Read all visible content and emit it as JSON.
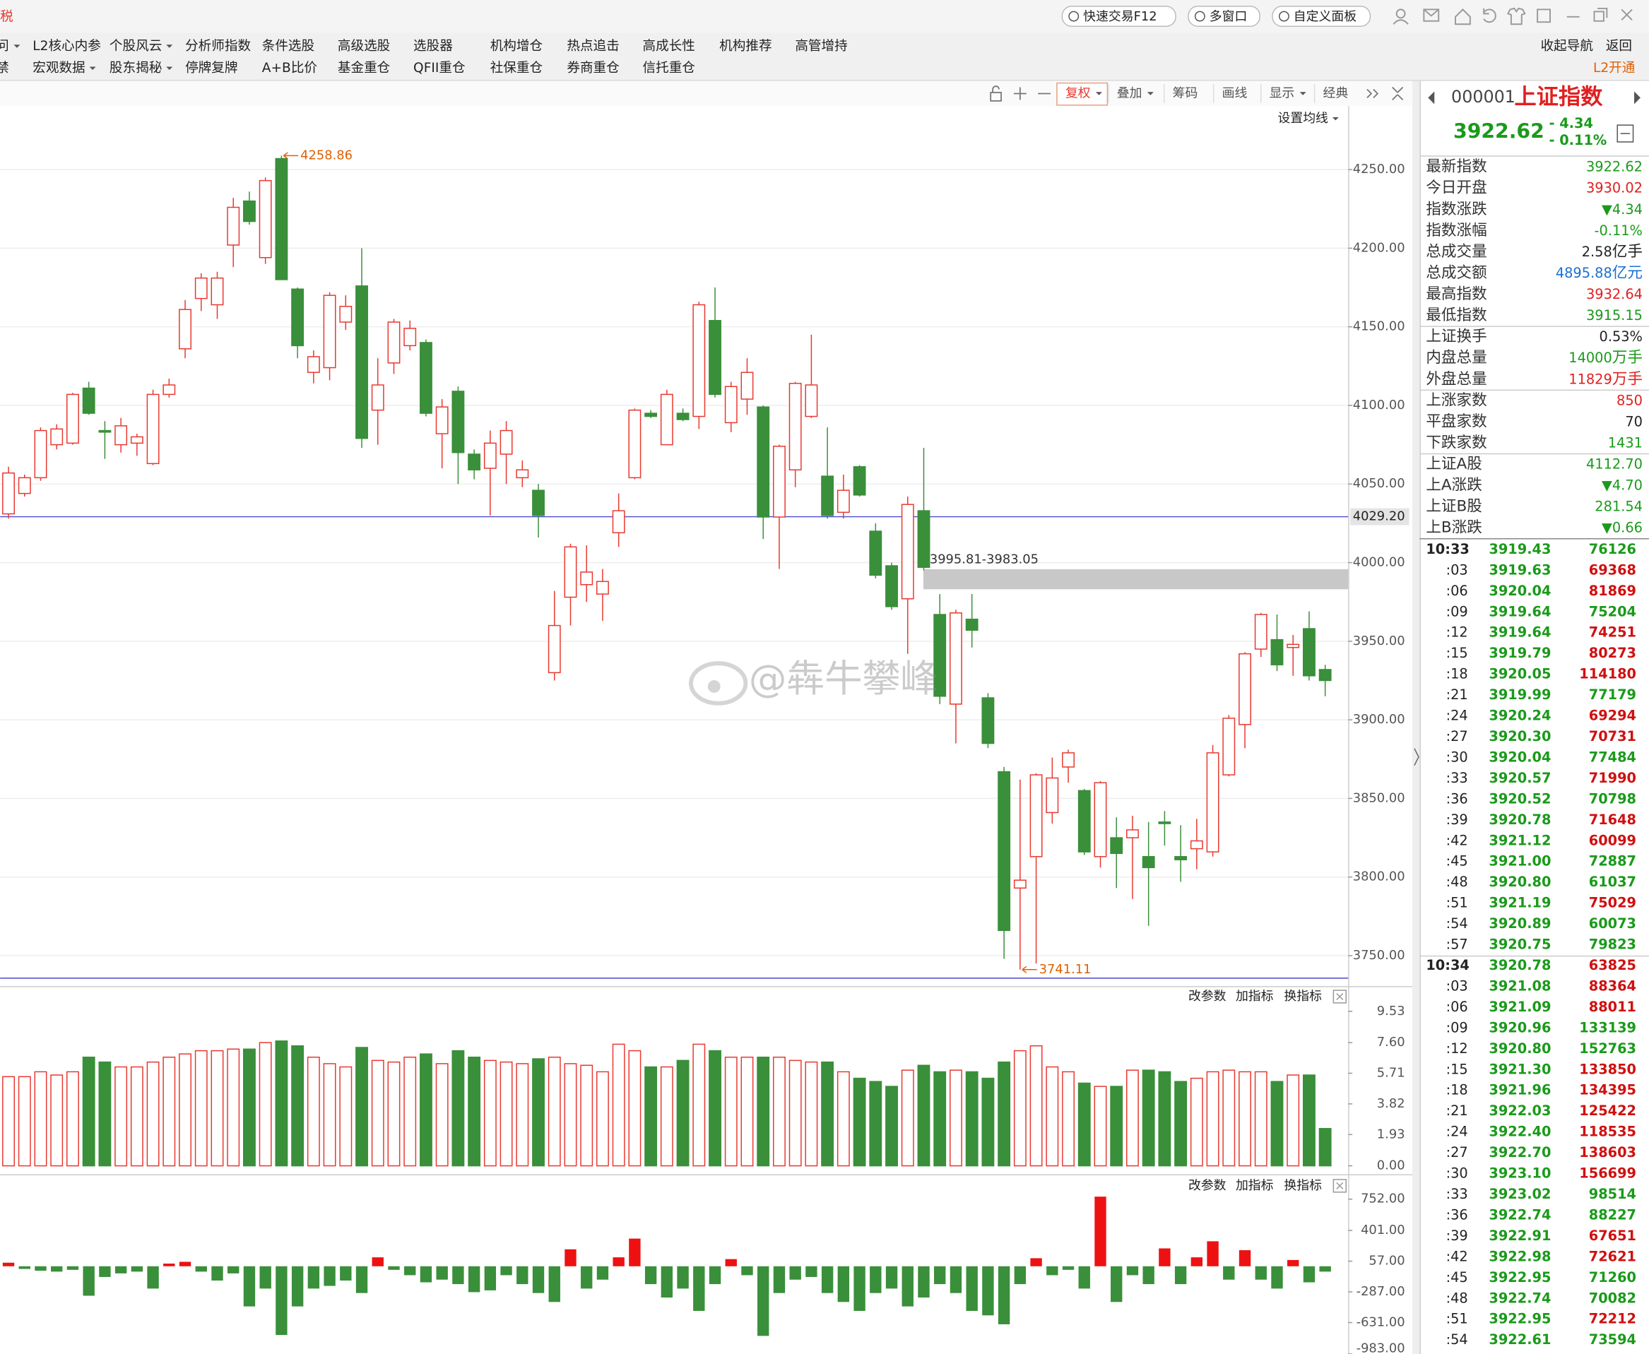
{
  "title_bar": {
    "left": "税",
    "buttons": [
      "快速交易F12",
      "多窗口",
      "自定义面板"
    ]
  },
  "menu": {
    "row1": [
      "问",
      "L2核心内参",
      "个股风云",
      "分析师指数",
      "条件选股",
      "高级选股",
      "选股器",
      "机构增仓",
      "热点追击",
      "高成长性",
      "机构推荐",
      "高管增持"
    ],
    "row2": [
      "禁",
      "宏观数据",
      "股东揭秘",
      "停牌复牌",
      "A+B比价",
      "基金重仓",
      "QFII重仓",
      "社保重仓",
      "券商重仓",
      "信托重仓"
    ],
    "right1": [
      "收起导航",
      "返回"
    ],
    "right2": "L2开通"
  },
  "toolbar": [
    "复权",
    "叠加",
    "筹码",
    "画线",
    "显示",
    "经典"
  ],
  "ma_button": "设置均线",
  "watermark": "@犇牛攀峰",
  "chart_data": {
    "type": "candlestick",
    "up_color": "#e8382f",
    "down_color": "#3a8f3a",
    "open": [
      4031,
      4044,
      4054,
      4075,
      4076,
      4111,
      4084,
      4075,
      4076,
      4063,
      4107,
      4136,
      4168,
      4164,
      4202,
      4230,
      4194,
      4257,
      4174,
      4121,
      4124,
      4153,
      4176,
      4097,
      4127,
      4138,
      4140,
      4082,
      4109,
      4069,
      4060,
      4069,
      4054,
      4046,
      3930,
      3978,
      3986,
      3980,
      4019,
      4054,
      4095,
      4075,
      4095,
      4093,
      4154,
      4089,
      4104,
      4099,
      4029,
      4059,
      4093,
      4055,
      4032,
      4061,
      4020,
      3998,
      3977,
      4033,
      3967,
      3910,
      3964,
      3914,
      3867,
      3793,
      3813,
      3841,
      3870,
      3855,
      3813,
      3825,
      3825,
      3813,
      3835,
      3813,
      3818,
      3816,
      3865,
      3897,
      3945,
      3951,
      3946,
      3958,
      3932
    ],
    "high": [
      4061,
      4056,
      4086,
      4088,
      4108,
      4115,
      4090,
      4092,
      4082,
      4110,
      4117,
      4167,
      4184,
      4185,
      4232,
      4236,
      4245,
      4258.86,
      4175,
      4135,
      4172,
      4170,
      4200,
      4130,
      4155,
      4154,
      4142,
      4104,
      4112,
      4072,
      4084,
      4090,
      4065,
      4050,
      3982,
      4012,
      4011,
      3996,
      4044,
      4098,
      4097,
      4110,
      4098,
      4166,
      4175,
      4115,
      4130,
      4100,
      4075,
      4115,
      4145,
      4086,
      4056,
      4062,
      4025,
      4000,
      4042,
      4073,
      3980,
      3970,
      3980,
      3917,
      3870,
      3862,
      3866,
      3876,
      3881,
      3856,
      3861,
      3838,
      3839,
      3835,
      3842,
      3833,
      3837,
      3884,
      3903,
      3943,
      3968,
      3967,
      3954,
      3969,
      3935
    ],
    "low": [
      4028,
      4042,
      4052,
      4072,
      4075,
      4094,
      4066,
      4070,
      4068,
      4062,
      4105,
      4130,
      4160,
      4155,
      4188,
      4215,
      4190,
      4180,
      4130,
      4114,
      4116,
      4148,
      4073,
      4075,
      4120,
      4135,
      4093,
      4060,
      4050,
      4053,
      4030,
      4050,
      4048,
      4016,
      3925,
      3960,
      3975,
      3963,
      4010,
      4053,
      4092,
      4075,
      4090,
      4085,
      4105,
      4083,
      4094,
      4015,
      3996,
      4048,
      4092,
      4028,
      4028,
      4042,
      3990,
      3970,
      3942,
      3995,
      3910,
      3885,
      3946,
      3882,
      3748,
      3741.11,
      3745,
      3834,
      3860,
      3814,
      3806,
      3793,
      3786,
      3769,
      3820,
      3797,
      3805,
      3813,
      3864,
      3882,
      3940,
      3931,
      3928,
      3925,
      3915
    ],
    "close": [
      4057,
      4054,
      4084,
      4085,
      4107,
      4095,
      4083,
      4087,
      4080,
      4107,
      4113,
      4161,
      4181,
      4181,
      4226,
      4217,
      4243,
      4180,
      4138,
      4131,
      4170,
      4163,
      4079,
      4113,
      4153,
      4149,
      4095,
      4099,
      4070,
      4059,
      4076,
      4084,
      4059,
      4030,
      3960,
      4010,
      3994,
      3988,
      4033,
      4097,
      4093,
      4107,
      4091,
      4164,
      4107,
      4112,
      4121,
      4029,
      4074,
      4114,
      4113,
      4030,
      4046,
      4043,
      3992,
      3972,
      4037,
      3997,
      3915,
      3968,
      3957,
      3885,
      3766,
      3798,
      3865,
      3863,
      3879,
      3816,
      3860,
      3815,
      3830,
      3806,
      3834,
      3811,
      3823,
      3879,
      3901,
      3942,
      3967,
      3935,
      3948,
      3928,
      3925
    ],
    "ylim": [
      3736,
      4291
    ],
    "yticks": [
      {
        "value": 3750,
        "label": "3750.00"
      },
      {
        "value": 3800,
        "label": "3800.00"
      },
      {
        "value": 3850,
        "label": "3850.00"
      },
      {
        "value": 3900,
        "label": "3900.00"
      },
      {
        "value": 3950,
        "label": "3950.00"
      },
      {
        "value": 4000,
        "label": "4000.00"
      },
      {
        "value": 4050,
        "label": "4050.00"
      },
      {
        "value": 4100,
        "label": "4100.00"
      },
      {
        "value": 4150,
        "label": "4150.00"
      },
      {
        "value": 4200,
        "label": "4200.00"
      },
      {
        "value": 4250,
        "label": "4250.00"
      }
    ],
    "grid": true,
    "annotations": {
      "high": 4258.86,
      "low": 3741.11,
      "gap": [
        3995.81,
        3983.05
      ],
      "gap_label": "3995.81-3983.05",
      "level": {
        "value": 4029.2,
        "label": "4029.20"
      }
    },
    "volume": {
      "values": [
        5.5,
        5.5,
        5.8,
        5.6,
        5.8,
        6.7,
        6.4,
        6.1,
        6.1,
        6.4,
        6.7,
        6.9,
        7.1,
        7.1,
        7.2,
        7.2,
        7.6,
        7.7,
        7.4,
        6.7,
        6.3,
        6.1,
        7.3,
        6.5,
        6.4,
        6.7,
        6.9,
        6.3,
        7.1,
        6.7,
        6.5,
        6.4,
        6.3,
        6.6,
        6.7,
        6.3,
        6.2,
        5.8,
        7.5,
        7.1,
        6.1,
        6.1,
        6.5,
        7.5,
        7.1,
        6.7,
        6.7,
        6.7,
        6.7,
        6.5,
        6.4,
        6.4,
        5.8,
        5.4,
        5.2,
        4.9,
        5.9,
        6.2,
        5.8,
        5.9,
        5.8,
        5.4,
        6.4,
        7.1,
        7.4,
        6.1,
        5.8,
        5.1,
        4.9,
        4.9,
        5.9,
        5.9,
        5.8,
        5.2,
        5.4,
        5.8,
        5.9,
        5.8,
        5.8,
        5.2,
        5.6,
        5.6,
        2.3
      ],
      "ylim": [
        0,
        9.53
      ],
      "yticks": [
        {
          "value": 0,
          "label": "0.00"
        },
        1.93,
        3.82,
        5.71,
        {
          "value": 7.6,
          "label": "7.60"
        },
        9.53
      ],
      "buttons": [
        "改参数",
        "加指标",
        "换指标"
      ]
    },
    "indicator": {
      "values": [
        40,
        -30,
        -50,
        -60,
        -40,
        -330,
        -120,
        -80,
        -60,
        -250,
        30,
        50,
        -60,
        -160,
        -80,
        -450,
        -250,
        -770,
        -450,
        -250,
        -220,
        -160,
        -300,
        100,
        -40,
        -100,
        -180,
        -150,
        -200,
        -290,
        -270,
        -100,
        -200,
        -300,
        -400,
        190,
        -250,
        -150,
        100,
        310,
        -200,
        -350,
        -250,
        -500,
        -200,
        80,
        -100,
        -780,
        -300,
        -150,
        -120,
        -300,
        -400,
        -500,
        -300,
        -250,
        -450,
        -350,
        -200,
        -300,
        -500,
        -550,
        -650,
        -200,
        90,
        -100,
        -40,
        -250,
        780,
        -400,
        -100,
        -200,
        200,
        -200,
        100,
        280,
        -150,
        180,
        -150,
        -250,
        70,
        -180,
        -60
      ],
      "ylim": [
        -983,
        819
      ],
      "yticks": [
        {
          "value": 752,
          "label": "752.00"
        },
        {
          "value": 401,
          "label": "401.00"
        },
        {
          "value": 57,
          "label": "57.00"
        },
        {
          "value": -287,
          "label": "-287.00"
        },
        {
          "value": -631,
          "label": "-631.00"
        },
        {
          "value": -983,
          "label": "-983.00"
        }
      ],
      "buttons": [
        "改参数",
        "加指标",
        "换指标"
      ]
    }
  },
  "quote": {
    "code": "000001",
    "name": "上证指数",
    "price": "3922.62",
    "change": "- 4.34",
    "pct": "- 0.11%",
    "stats": [
      {
        "label": "最新指数",
        "value": "3922.62",
        "color": "#1a9a1a"
      },
      {
        "label": "今日开盘",
        "value": "3930.02",
        "color": "#e02020"
      },
      {
        "label": "指数涨跌",
        "value": "▼4.34",
        "color": "#1a9a1a"
      },
      {
        "label": "指数涨幅",
        "value": "-0.11%",
        "color": "#1a9a1a"
      },
      {
        "label": "总成交量",
        "value": "2.58",
        "unit": "亿手",
        "color": "#222",
        "unit_color": "#222"
      },
      {
        "label": "总成交额",
        "value": "4895.88",
        "unit": "亿元",
        "color": "#1a6fd0",
        "unit_color": "#1a6fd0"
      },
      {
        "label": "最高指数",
        "value": "3932.64",
        "color": "#e02020"
      },
      {
        "label": "最低指数",
        "value": "3915.15",
        "color": "#1a9a1a"
      },
      {
        "label": "上证换手",
        "value": "0.53%",
        "color": "#222"
      },
      {
        "label": "内盘总量",
        "value": "14000",
        "unit": "万手",
        "color": "#1a9a1a",
        "unit_color": "#1a9a1a"
      },
      {
        "label": "外盘总量",
        "value": "11829",
        "unit": "万手",
        "color": "#e02020",
        "unit_color": "#e02020"
      },
      {
        "label": "上涨家数",
        "value": "850",
        "color": "#e02020"
      },
      {
        "label": "平盘家数",
        "value": "70",
        "color": "#222"
      },
      {
        "label": "下跌家数",
        "value": "1431",
        "color": "#1a9a1a"
      },
      {
        "label": "上证A股",
        "value": "4112.70",
        "color": "#1a9a1a"
      },
      {
        "label": "上A涨跌",
        "value": "▼4.70",
        "color": "#1a9a1a"
      },
      {
        "label": "上证B股",
        "value": "281.54",
        "color": "#1a9a1a"
      },
      {
        "label": "上B涨跌",
        "value": "▼0.66",
        "color": "#1a9a1a"
      }
    ],
    "price_color": "#1a9a1a",
    "ticks": {
      "times": [
        "10:33",
        ":03",
        ":06",
        ":09",
        ":12",
        ":15",
        ":18",
        ":21",
        ":24",
        ":27",
        ":30",
        ":33",
        ":36",
        ":39",
        ":42",
        ":45",
        ":48",
        ":51",
        ":54",
        ":57",
        "10:34",
        ":03",
        ":06",
        ":09",
        ":12",
        ":15",
        ":18",
        ":21",
        ":24",
        ":27",
        ":30",
        ":33",
        ":36",
        ":39",
        ":42",
        ":45",
        ":48",
        ":51",
        ":54"
      ],
      "prices": [
        "3919.43",
        "3919.63",
        "3920.04",
        "3919.64",
        "3919.64",
        "3919.79",
        "3920.05",
        "3919.99",
        "3920.24",
        "3920.30",
        "3920.04",
        "3920.57",
        "3920.52",
        "3920.78",
        "3921.12",
        "3921.00",
        "3920.80",
        "3921.19",
        "3920.89",
        "3920.75",
        "3920.78",
        "3921.08",
        "3921.09",
        "3920.96",
        "3920.80",
        "3921.30",
        "3921.96",
        "3922.03",
        "3922.40",
        "3922.70",
        "3923.10",
        "3923.02",
        "3922.74",
        "3922.91",
        "3922.98",
        "3922.95",
        "3922.74",
        "3922.95",
        "3922.61"
      ],
      "volumes": [
        "76126",
        "69368",
        "81869",
        "75204",
        "74251",
        "80273",
        "114180",
        "77179",
        "69294",
        "70731",
        "77484",
        "71990",
        "70798",
        "71648",
        "60099",
        "72887",
        "61037",
        "75029",
        "60073",
        "79823",
        "63825",
        "88364",
        "88011",
        "133139",
        "152763",
        "133850",
        "134395",
        "125422",
        "118535",
        "138603",
        "156699",
        "98514",
        "88227",
        "67651",
        "72621",
        "71260",
        "70082",
        "72212",
        "73594"
      ],
      "volume_colors": [
        "#1a9a1a",
        "#d01010",
        "#d01010",
        "#1a9a1a",
        "#d01010",
        "#d01010",
        "#d01010",
        "#1a9a1a",
        "#d01010",
        "#d01010",
        "#1a9a1a",
        "#d01010",
        "#1a9a1a",
        "#d01010",
        "#d01010",
        "#1a9a1a",
        "#1a9a1a",
        "#d01010",
        "#1a9a1a",
        "#1a9a1a",
        "#d01010",
        "#d01010",
        "#d01010",
        "#1a9a1a",
        "#1a9a1a",
        "#d01010",
        "#d01010",
        "#d01010",
        "#d01010",
        "#d01010",
        "#d01010",
        "#1a9a1a",
        "#1a9a1a",
        "#d01010",
        "#d01010",
        "#1a9a1a",
        "#1a9a1a",
        "#d01010",
        "#1a9a1a"
      ]
    }
  }
}
